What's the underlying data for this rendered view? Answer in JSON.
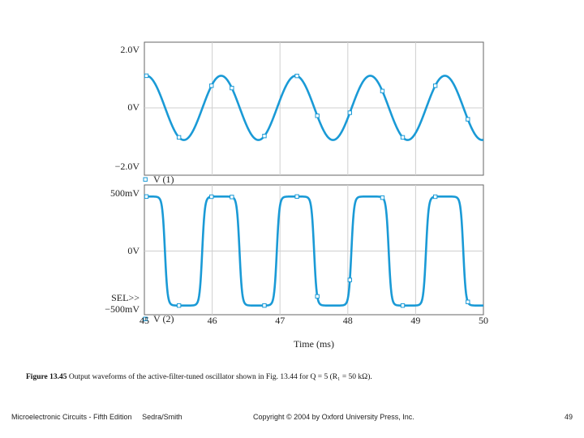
{
  "chart_data": [
    {
      "type": "line",
      "series": [
        {
          "name": "V (1)",
          "amplitude": 1.1,
          "unit": "V",
          "shape": "sine"
        }
      ],
      "x_range": [
        45,
        50
      ],
      "ylim": [
        -2.0,
        2.0
      ],
      "y_ticks": [
        "2.0V",
        "0V",
        "−2.0V"
      ],
      "period_ms": 1.1,
      "color": "#1a9ad6",
      "grid": true
    },
    {
      "type": "line",
      "series": [
        {
          "name": "V (2)",
          "amplitude": 0.47,
          "unit": "V",
          "shape": "clipped-square"
        }
      ],
      "x_range": [
        45,
        50
      ],
      "ylim": [
        -0.5,
        0.5
      ],
      "y_ticks": [
        "500mV",
        "0V",
        "SEL>>",
        "−500mV"
      ],
      "x_ticks": [
        "45",
        "46",
        "47",
        "48",
        "49",
        "50"
      ],
      "xlabel": "Time (ms)",
      "period_ms": 1.1,
      "color": "#1a9ad6",
      "grid": true
    }
  ],
  "caption": {
    "label": "Figure 13.45",
    "text": "Output waveforms of the active-filter-tuned oscillator shown in Fig. 13.44 for Q = 5 (R₁ = 50 kΩ)."
  },
  "footer": {
    "book": "Microelectronic Circuits - Fifth Edition",
    "authors": "Sedra/Smith",
    "copyright": "Copyright © 2004 by Oxford University Press, Inc.",
    "page": "49"
  }
}
